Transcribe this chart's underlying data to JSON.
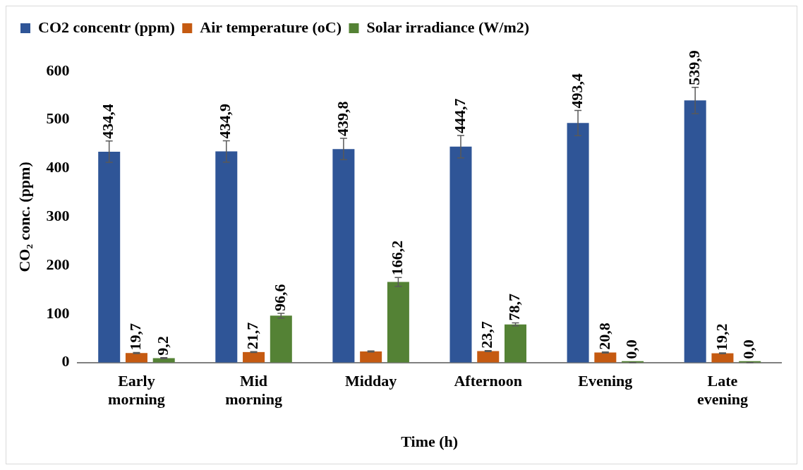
{
  "chart_data": {
    "type": "bar",
    "xlabel": "Time (h)",
    "ylabel": "CO₂ conc. (ppm)",
    "categories": [
      "Early morning",
      "Mid morning",
      "Midday",
      "Afternoon",
      "Evening",
      "Late evening"
    ],
    "series": [
      {
        "name": "CO2 concentr (ppm)",
        "color": "#2f5597",
        "values": [
          434.4,
          434.9,
          439.8,
          444.7,
          493.4,
          539.9
        ],
        "errors": [
          22,
          22,
          22,
          23,
          26,
          27
        ],
        "value_labels": [
          "434,4",
          "434,9",
          "439,8",
          "444,7",
          "493,4",
          "539,9"
        ]
      },
      {
        "name": "Air temperature (oC)",
        "color": "#c55a11",
        "values": [
          19.7,
          21.7,
          23,
          23.7,
          20.8,
          19.2
        ],
        "errors": [
          1,
          1,
          1,
          1,
          1,
          1
        ],
        "value_labels": [
          "19,7",
          "21,7",
          null,
          "23,7",
          "20,8",
          "19,2"
        ]
      },
      {
        "name": "Solar irradiance (W/m2)",
        "color": "#548235",
        "values": [
          9.2,
          96.6,
          166.2,
          78.7,
          0,
          0
        ],
        "errors": [
          1,
          5,
          9,
          3,
          0,
          0
        ],
        "value_labels": [
          "9,2",
          "96,6",
          "166,2",
          "78,7",
          "0,0",
          "0,0"
        ]
      }
    ],
    "ylim": [
      0,
      600
    ],
    "yticks": [
      0,
      100,
      200,
      300,
      400,
      500,
      600
    ],
    "grid": false,
    "legend": "top"
  }
}
